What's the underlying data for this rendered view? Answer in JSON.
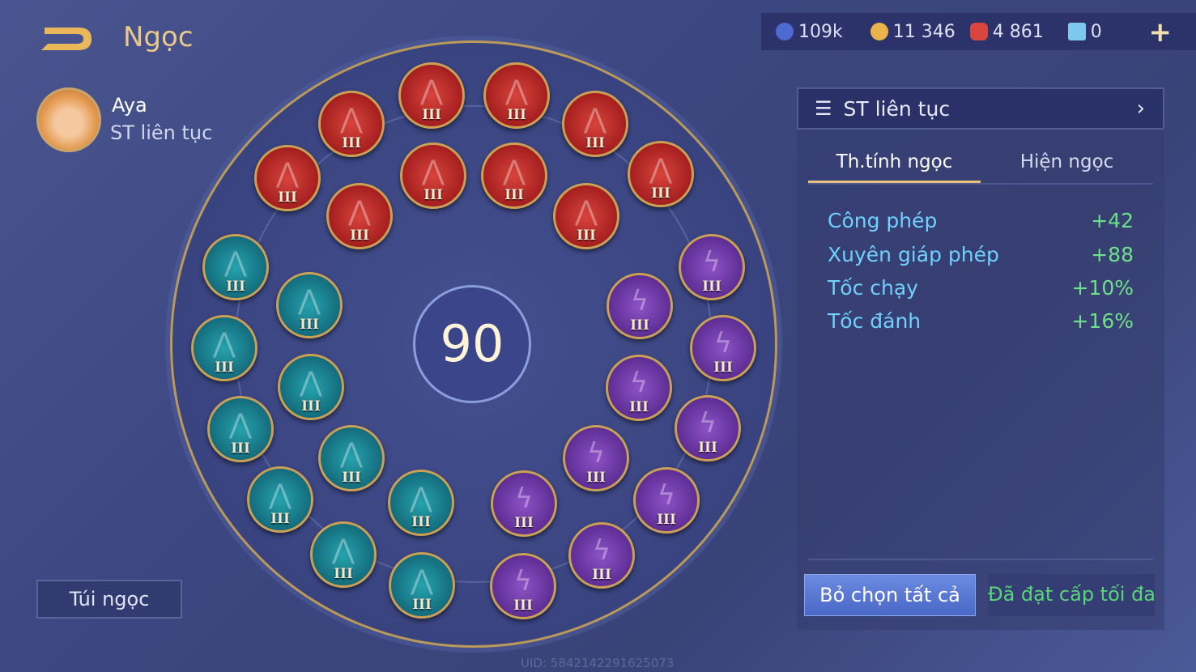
{
  "header": {
    "title": "Ngọc",
    "back_icon": "back-arrow-icon"
  },
  "hero": {
    "name": "Aya",
    "preset": "ST liên tục"
  },
  "resources": [
    {
      "icon": "blue-coin-icon",
      "value": "109k",
      "color": "#4e6ad0"
    },
    {
      "icon": "gold-coin-icon",
      "value": "11 346",
      "color": "#e9b44c"
    },
    {
      "icon": "red-gem-icon",
      "value": "4 861",
      "color": "#d9463e"
    },
    {
      "icon": "blue-card-icon",
      "value": "0",
      "color": "#7ec8f0"
    }
  ],
  "wheel": {
    "level": "90",
    "gems": {
      "red": {
        "count": 10,
        "tier": "III",
        "color": "#b52626"
      },
      "teal": {
        "count": 10,
        "tier": "III",
        "color": "#167584"
      },
      "purple": {
        "count": 10,
        "tier": "III",
        "color": "#6a34a0"
      }
    }
  },
  "bag_label": "Túi ngọc",
  "panel": {
    "preset_name": "ST liên tục",
    "tabs": [
      "Th.tính ngọc",
      "Hiện ngọc"
    ],
    "stats": [
      {
        "name": "Công phép",
        "value": "+42"
      },
      {
        "name": "Xuyên giáp phép",
        "value": "+88"
      },
      {
        "name": "Tốc chạy",
        "value": "+10%"
      },
      {
        "name": "Tốc đánh",
        "value": "+16%"
      }
    ],
    "deselect_label": "Bỏ chọn tất cả",
    "max_label": "Đã đạt cấp tối đa"
  },
  "uid": "UID: 5842142291625073"
}
